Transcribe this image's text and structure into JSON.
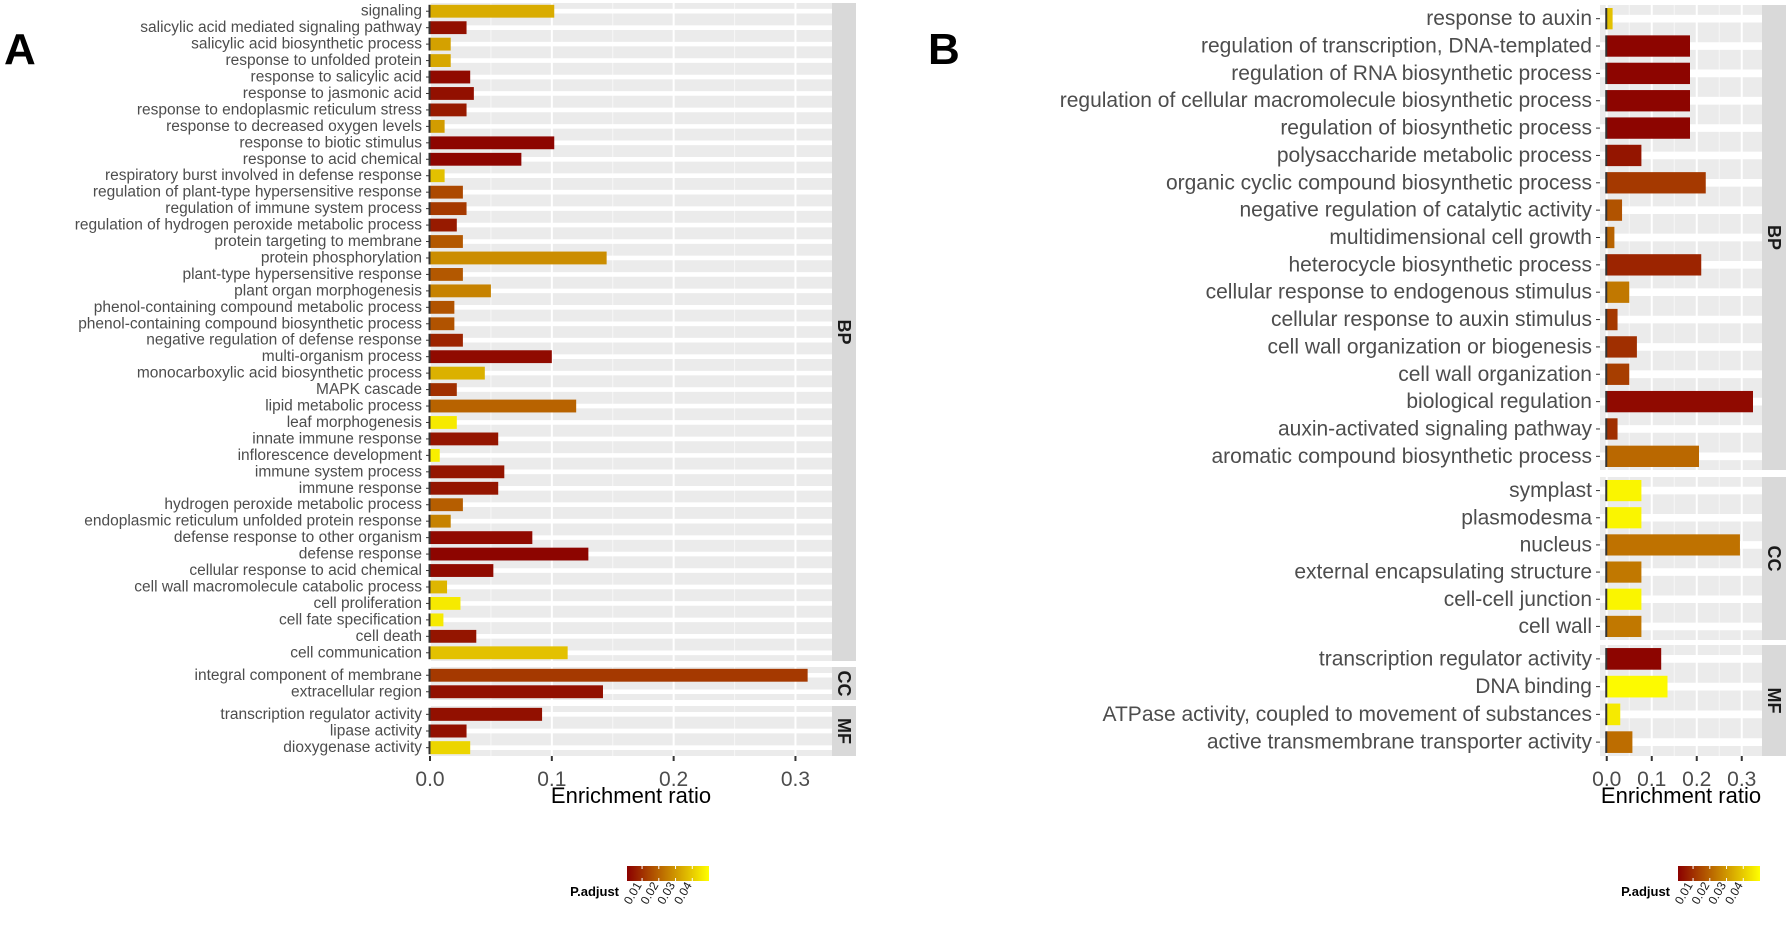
{
  "chart_data": [
    {
      "panel": "A",
      "type": "bar",
      "orientation": "horizontal",
      "xlabel": "Enrichment ratio",
      "xlim": [
        0,
        0.33
      ],
      "xticks": [
        "0.0",
        "0.1",
        "0.2",
        "0.3"
      ],
      "xtick_values": [
        0,
        0.1,
        0.2,
        0.3
      ],
      "legend": {
        "title": "P.adjust",
        "ticks": [
          "0.01",
          "0.02",
          "0.03",
          "0.04"
        ],
        "range": [
          0.001,
          0.05
        ],
        "colors": [
          "#8b0000",
          "#ffff00"
        ]
      },
      "groups": [
        {
          "name": "BP",
          "bars": [
            {
              "term": "signaling",
              "value": 0.102,
              "padj": 0.034
            },
            {
              "term": "salicylic acid mediated signaling pathway",
              "value": 0.03,
              "padj": 0.004
            },
            {
              "term": "salicylic acid biosynthetic process",
              "value": 0.017,
              "padj": 0.032
            },
            {
              "term": "response to unfolded protein",
              "value": 0.017,
              "padj": 0.033
            },
            {
              "term": "response to salicylic acid",
              "value": 0.033,
              "padj": 0.003
            },
            {
              "term": "response to jasmonic acid",
              "value": 0.036,
              "padj": 0.004
            },
            {
              "term": "response to endoplasmic reticulum stress",
              "value": 0.03,
              "padj": 0.006
            },
            {
              "term": "response to decreased oxygen levels",
              "value": 0.012,
              "padj": 0.031
            },
            {
              "term": "response to biotic stimulus",
              "value": 0.102,
              "padj": 0.002
            },
            {
              "term": "response to acid chemical",
              "value": 0.075,
              "padj": 0.002
            },
            {
              "term": "respiratory burst involved in defense response",
              "value": 0.012,
              "padj": 0.038
            },
            {
              "term": "regulation of plant-type hypersensitive response",
              "value": 0.027,
              "padj": 0.015
            },
            {
              "term": "regulation of immune system process",
              "value": 0.03,
              "padj": 0.012
            },
            {
              "term": "regulation of hydrogen peroxide metabolic process",
              "value": 0.022,
              "padj": 0.006
            },
            {
              "term": "protein targeting to membrane",
              "value": 0.027,
              "padj": 0.018
            },
            {
              "term": "protein phosphorylation",
              "value": 0.145,
              "padj": 0.028
            },
            {
              "term": "plant-type hypersensitive response",
              "value": 0.027,
              "padj": 0.018
            },
            {
              "term": "plant organ morphogenesis",
              "value": 0.05,
              "padj": 0.026
            },
            {
              "term": "phenol-containing compound metabolic process",
              "value": 0.02,
              "padj": 0.017
            },
            {
              "term": "phenol-containing compound biosynthetic process",
              "value": 0.02,
              "padj": 0.017
            },
            {
              "term": "negative regulation of defense response",
              "value": 0.027,
              "padj": 0.008
            },
            {
              "term": "multi-organism process",
              "value": 0.1,
              "padj": 0.003
            },
            {
              "term": "monocarboxylic acid biosynthetic process",
              "value": 0.045,
              "padj": 0.035
            },
            {
              "term": "MAPK cascade",
              "value": 0.022,
              "padj": 0.01
            },
            {
              "term": "lipid metabolic process",
              "value": 0.12,
              "padj": 0.02
            },
            {
              "term": "leaf morphogenesis",
              "value": 0.022,
              "padj": 0.046
            },
            {
              "term": "innate immune response",
              "value": 0.056,
              "padj": 0.005
            },
            {
              "term": "inflorescence development",
              "value": 0.008,
              "padj": 0.047
            },
            {
              "term": "immune system process",
              "value": 0.061,
              "padj": 0.005
            },
            {
              "term": "immune response",
              "value": 0.056,
              "padj": 0.005
            },
            {
              "term": "hydrogen peroxide metabolic process",
              "value": 0.027,
              "padj": 0.019
            },
            {
              "term": "endoplasmic reticulum unfolded protein response",
              "value": 0.017,
              "padj": 0.026
            },
            {
              "term": "defense response to other organism",
              "value": 0.084,
              "padj": 0.003
            },
            {
              "term": "defense response",
              "value": 0.13,
              "padj": 0.002
            },
            {
              "term": "cellular response to acid chemical",
              "value": 0.052,
              "padj": 0.003
            },
            {
              "term": "cell wall macromolecule catabolic process",
              "value": 0.014,
              "padj": 0.036
            },
            {
              "term": "cell proliferation",
              "value": 0.025,
              "padj": 0.046
            },
            {
              "term": "cell fate specification",
              "value": 0.011,
              "padj": 0.046
            },
            {
              "term": "cell death",
              "value": 0.038,
              "padj": 0.005
            },
            {
              "term": "cell communication",
              "value": 0.113,
              "padj": 0.038
            }
          ]
        },
        {
          "name": "CC",
          "bars": [
            {
              "term": "integral component of membrane",
              "value": 0.31,
              "padj": 0.012
            },
            {
              "term": "extracellular region",
              "value": 0.142,
              "padj": 0.004
            }
          ]
        },
        {
          "name": "MF",
          "bars": [
            {
              "term": "transcription regulator activity",
              "value": 0.092,
              "padj": 0.004
            },
            {
              "term": "lipase activity",
              "value": 0.03,
              "padj": 0.004
            },
            {
              "term": "dioxygenase activity",
              "value": 0.033,
              "padj": 0.042
            }
          ]
        }
      ]
    },
    {
      "panel": "B",
      "type": "bar",
      "orientation": "horizontal",
      "xlabel": "Enrichment ratio",
      "xlim": [
        -0.015,
        0.345
      ],
      "xticks": [
        "0.0",
        "0.1",
        "0.2",
        "0.3"
      ],
      "xtick_values": [
        0,
        0.1,
        0.2,
        0.3
      ],
      "legend": {
        "title": "P.adjust",
        "ticks": [
          "0.01",
          "0.02",
          "0.03",
          "0.04"
        ],
        "range": [
          0.001,
          0.05
        ],
        "colors": [
          "#8b0000",
          "#ffff00"
        ]
      },
      "groups": [
        {
          "name": "BP",
          "bars": [
            {
              "term": "response to auxin",
              "value": 0.013,
              "padj": 0.038
            },
            {
              "term": "regulation of transcription, DNA-templated",
              "value": 0.185,
              "padj": 0.002
            },
            {
              "term": "regulation of RNA biosynthetic process",
              "value": 0.185,
              "padj": 0.002
            },
            {
              "term": "regulation of cellular macromolecule biosynthetic process",
              "value": 0.185,
              "padj": 0.002
            },
            {
              "term": "regulation of biosynthetic process",
              "value": 0.185,
              "padj": 0.002
            },
            {
              "term": "polysaccharide metabolic process",
              "value": 0.077,
              "padj": 0.005
            },
            {
              "term": "organic cyclic compound biosynthetic process",
              "value": 0.22,
              "padj": 0.012
            },
            {
              "term": "negative regulation of catalytic activity",
              "value": 0.034,
              "padj": 0.017
            },
            {
              "term": "multidimensional cell growth",
              "value": 0.017,
              "padj": 0.02
            },
            {
              "term": "heterocycle biosynthetic process",
              "value": 0.21,
              "padj": 0.008
            },
            {
              "term": "cellular response to endogenous stimulus",
              "value": 0.05,
              "padj": 0.024
            },
            {
              "term": "cellular response to auxin stimulus",
              "value": 0.024,
              "padj": 0.012
            },
            {
              "term": "cell wall organization or biogenesis",
              "value": 0.067,
              "padj": 0.01
            },
            {
              "term": "cell wall organization",
              "value": 0.05,
              "padj": 0.013
            },
            {
              "term": "biological regulation",
              "value": 0.325,
              "padj": 0.003
            },
            {
              "term": "auxin-activated signaling pathway",
              "value": 0.024,
              "padj": 0.01
            },
            {
              "term": "aromatic compound biosynthetic process",
              "value": 0.205,
              "padj": 0.021
            }
          ]
        },
        {
          "name": "CC",
          "bars": [
            {
              "term": "symplast",
              "value": 0.077,
              "padj": 0.048
            },
            {
              "term": "plasmodesma",
              "value": 0.077,
              "padj": 0.048
            },
            {
              "term": "nucleus",
              "value": 0.296,
              "padj": 0.023
            },
            {
              "term": "external encapsulating structure",
              "value": 0.077,
              "padj": 0.024
            },
            {
              "term": "cell-cell junction",
              "value": 0.077,
              "padj": 0.048
            },
            {
              "term": "cell wall",
              "value": 0.077,
              "padj": 0.024
            }
          ]
        },
        {
          "name": "MF",
          "bars": [
            {
              "term": "transcription regulator activity",
              "value": 0.121,
              "padj": 0.002
            },
            {
              "term": "DNA binding",
              "value": 0.135,
              "padj": 0.049
            },
            {
              "term": "ATPase activity, coupled to movement of substances",
              "value": 0.03,
              "padj": 0.046
            },
            {
              "term": "active transmembrane transporter activity",
              "value": 0.057,
              "padj": 0.022
            }
          ]
        }
      ]
    }
  ],
  "panel_labels": [
    "A",
    "B"
  ]
}
